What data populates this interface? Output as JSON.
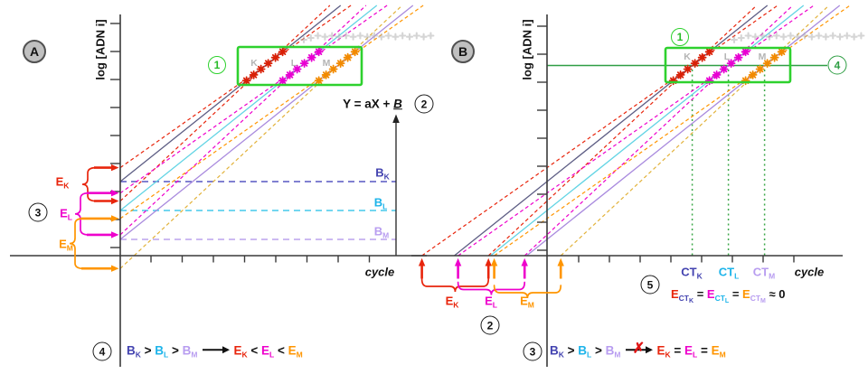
{
  "colors": {
    "k_line": "#5d5d84",
    "l_line": "#62d4e4",
    "m_line": "#a98ade",
    "k_ci": "#e8250c",
    "l_ci": "#ee00cc",
    "m_ci": "#ff9500",
    "m_ci2": "#e2b23a",
    "k_marker": "#d92007",
    "l_marker": "#e800d2",
    "m_marker": "#f28a00",
    "k_dash": "#5656c2",
    "l_dash": "#45c9ec",
    "m_dash": "#bba4ee",
    "box_green": "#2ed12e",
    "threshold_green": "#2f9e44",
    "dropline_green": "#3da84a",
    "plateau_gray": "#b3b3b3",
    "axis": "#3a3a3a",
    "cluster_label": "#b4b4b4"
  },
  "panelA": {
    "panel_letter": "A",
    "y_axis_label": "log [ADN i]",
    "x_axis_label": "cycle",
    "step1": "1",
    "step2": "2",
    "step3": "3",
    "step4": "4",
    "cluster_labels": [
      "K",
      "L",
      "M"
    ],
    "equation": [
      {
        "t": "Y = aX + ",
        "c": "#111111"
      },
      {
        "t": "B",
        "c": "#111111",
        "u": true,
        "i": true
      }
    ],
    "intercepts": [
      [
        {
          "t": "B",
          "s": "K",
          "c": "#4343b0"
        }
      ],
      [
        {
          "t": "B",
          "s": "L",
          "c": "#1db4ea"
        }
      ],
      [
        {
          "t": "B",
          "s": "M",
          "c": "#b89df0"
        }
      ]
    ],
    "errors": [
      [
        {
          "t": "E",
          "s": "K",
          "c": "#e8250c"
        }
      ],
      [
        {
          "t": "E",
          "s": "L",
          "c": "#ee00cc"
        }
      ],
      [
        {
          "t": "E",
          "s": "M",
          "c": "#ff9500"
        }
      ]
    ],
    "conclusion": [
      {
        "t": "B",
        "s": "K",
        "c": "#4343b0"
      },
      {
        "t": " > ",
        "c": "#111111"
      },
      {
        "t": "B",
        "s": "L",
        "c": "#1db4ea"
      },
      {
        "t": " > ",
        "c": "#111111"
      },
      {
        "t": "B",
        "s": "M",
        "c": "#b89df0"
      },
      {
        "arrow": true
      },
      {
        "t": "E",
        "s": "K",
        "c": "#e8250c"
      },
      {
        "t": " < ",
        "c": "#111111"
      },
      {
        "t": "E",
        "s": "L",
        "c": "#ee00cc"
      },
      {
        "t": " < ",
        "c": "#111111"
      },
      {
        "t": "E",
        "s": "M",
        "c": "#ff9500"
      }
    ]
  },
  "panelB": {
    "panel_letter": "B",
    "y_axis_label": "log [ADN i]",
    "x_axis_label": "cycle",
    "step1": "1",
    "step2": "2",
    "step3": "3",
    "step4": "4",
    "step5": "5",
    "cluster_labels": [
      "K",
      "L",
      "M"
    ],
    "ct_labels": [
      [
        {
          "t": "CT",
          "s": "K",
          "c": "#4343b0"
        }
      ],
      [
        {
          "t": "CT",
          "s": "L",
          "c": "#1db4ea"
        }
      ],
      [
        {
          "t": "CT",
          "s": "M",
          "c": "#b89df0"
        }
      ]
    ],
    "errors": [
      [
        {
          "t": "E",
          "s": "K",
          "c": "#e8250c"
        }
      ],
      [
        {
          "t": "E",
          "s": "L",
          "c": "#ee00cc"
        }
      ],
      [
        {
          "t": "E",
          "s": "M",
          "c": "#ff9500"
        }
      ]
    ],
    "ct_equation": [
      {
        "t": "E",
        "s": "CT",
        "s2": "K",
        "c": "#e8250c",
        "sc": "#4343b0"
      },
      {
        "t": " = ",
        "c": "#111111"
      },
      {
        "t": "E",
        "s": "CT",
        "s2": "L",
        "c": "#ee00cc",
        "sc": "#1db4ea"
      },
      {
        "t": " = ",
        "c": "#111111"
      },
      {
        "t": "E",
        "s": "CT",
        "s2": "M",
        "c": "#ff9500",
        "sc": "#b89df0"
      },
      {
        "t": " ≈ 0",
        "c": "#111111"
      }
    ],
    "conclusion": [
      {
        "t": "B",
        "s": "K",
        "c": "#4343b0"
      },
      {
        "t": " > ",
        "c": "#111111"
      },
      {
        "t": "B",
        "s": "L",
        "c": "#1db4ea"
      },
      {
        "t": " > ",
        "c": "#111111"
      },
      {
        "t": "B",
        "s": "M",
        "c": "#b89df0"
      },
      {
        "arrow": true,
        "x": true
      },
      {
        "t": "E",
        "s": "K",
        "c": "#e8250c"
      },
      {
        "t": " = ",
        "c": "#111111"
      },
      {
        "t": "E",
        "s": "L",
        "c": "#ee00cc"
      },
      {
        "t": " = ",
        "c": "#111111"
      },
      {
        "t": "E",
        "s": "M",
        "c": "#ff9500"
      }
    ]
  }
}
